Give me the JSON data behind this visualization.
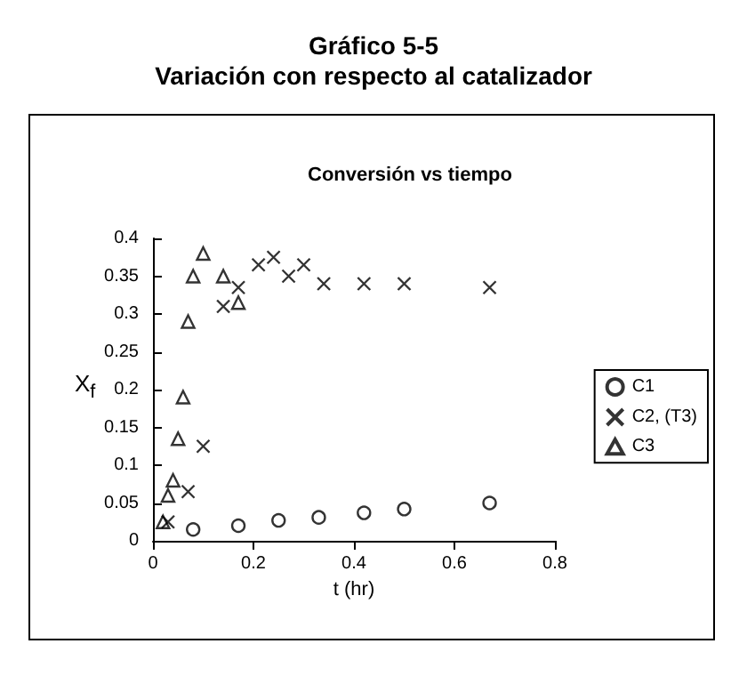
{
  "chart_data": {
    "type": "scatter",
    "title": "Gráfico 5-5\nVariación con respecto al catalizador",
    "subtitle": "Conversión vs tiempo",
    "xlabel": "t (hr)",
    "ylabel": "X$_{f}$",
    "series": [
      {
        "name": "C1",
        "color": "#000000",
        "marker": "circle",
        "x": [
          0.08,
          0.17,
          0.25,
          0.33,
          0.42,
          0.5,
          0.67
        ],
        "values": [
          0.015,
          0.02,
          0.027,
          0.031,
          0.037,
          0.042,
          0.05
        ]
      },
      {
        "name": "C2, (T3)",
        "color": "#000000",
        "marker": "cross",
        "x": [
          0.03,
          0.07,
          0.1,
          0.14,
          0.17,
          0.21,
          0.24,
          0.27,
          0.3,
          0.34,
          0.42,
          0.5,
          0.67
        ],
        "values": [
          0.025,
          0.065,
          0.125,
          0.31,
          0.335,
          0.365,
          0.375,
          0.35,
          0.365,
          0.34,
          0.34,
          0.34,
          0.335
        ]
      },
      {
        "name": "C3",
        "color": "#000000",
        "marker": "triangle",
        "x": [
          0.02,
          0.03,
          0.04,
          0.05,
          0.06,
          0.07,
          0.08,
          0.1,
          0.14,
          0.17
        ],
        "values": [
          0.025,
          0.06,
          0.08,
          0.135,
          0.19,
          0.29,
          0.35,
          0.38,
          0.35,
          0.315
        ]
      }
    ],
    "xlim": [
      0,
      0.8
    ],
    "xticks": [
      0,
      0.2,
      0.4,
      0.6,
      0.8
    ],
    "ylim": [
      0,
      0.4
    ],
    "yticks": [
      0,
      0.05,
      0.1,
      0.15,
      0.2,
      0.25,
      0.3,
      0.35,
      0.4
    ],
    "grid": false,
    "legend": "right"
  }
}
